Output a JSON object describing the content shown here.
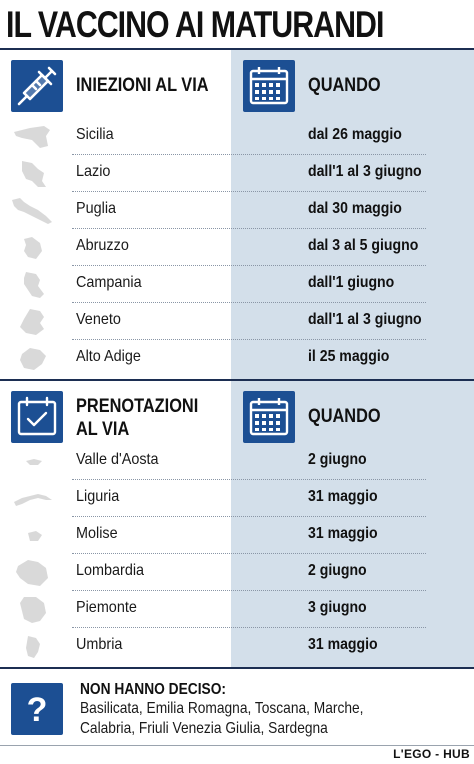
{
  "title": "IL VACCINO AI MATURANDI",
  "colors": {
    "accent": "#1c4f93",
    "panel_bg": "#d3dfea",
    "rule": "#1c2e52",
    "region_shape": "#d9d9d9"
  },
  "icons": {
    "injections": "syringe-icon",
    "when": "calendar-icon",
    "bookings": "calendar-check-icon",
    "undecided": "question-mark-icon"
  },
  "injections": {
    "header": "INIEZIONI AL VIA",
    "when_header": "QUANDO",
    "rows": [
      {
        "region": "Sicilia",
        "date": "dal 26 maggio"
      },
      {
        "region": "Lazio",
        "date": "dall'1 al 3 giugno"
      },
      {
        "region": "Puglia",
        "date": "dal 30 maggio"
      },
      {
        "region": "Abruzzo",
        "date": "dal 3 al 5 giugno"
      },
      {
        "region": "Campania",
        "date": "dall'1 giugno"
      },
      {
        "region": "Veneto",
        "date": "dall'1 al 3 giugno"
      },
      {
        "region": "Alto Adige",
        "date": "il 25 maggio"
      }
    ]
  },
  "bookings": {
    "header_line1": "PRENOTAZIONI",
    "header_line2": "AL VIA",
    "when_header": "QUANDO",
    "rows": [
      {
        "region": "Valle d'Aosta",
        "date": "2 giugno"
      },
      {
        "region": "Liguria",
        "date": "31 maggio"
      },
      {
        "region": "Molise",
        "date": "31 maggio"
      },
      {
        "region": "Lombardia",
        "date": "2 giugno"
      },
      {
        "region": "Piemonte",
        "date": "3 giugno"
      },
      {
        "region": "Umbria",
        "date": "31 maggio"
      }
    ]
  },
  "undecided": {
    "title": "NON HANNO DECISO:",
    "line1": "Basilicata, Emilia Romagna, Toscana, Marche,",
    "line2": "Calabria, Friuli Venezia Giulia, Sardegna"
  },
  "credit": "L'EGO - HUB"
}
